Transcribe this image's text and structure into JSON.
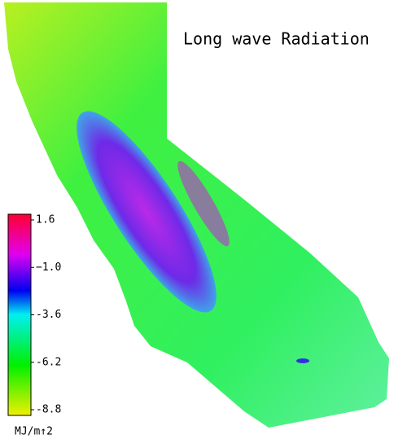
{
  "title": "Long wave Radiation",
  "colorbar": {
    "lim": [
      -8.8,
      1.6
    ],
    "ticks": [
      1.6,
      {
        "value": -1.0,
        "label": "−1.0"
      },
      -3.6,
      -6.2,
      -8.8
    ],
    "unit": "MJ/m↑2"
  }
}
